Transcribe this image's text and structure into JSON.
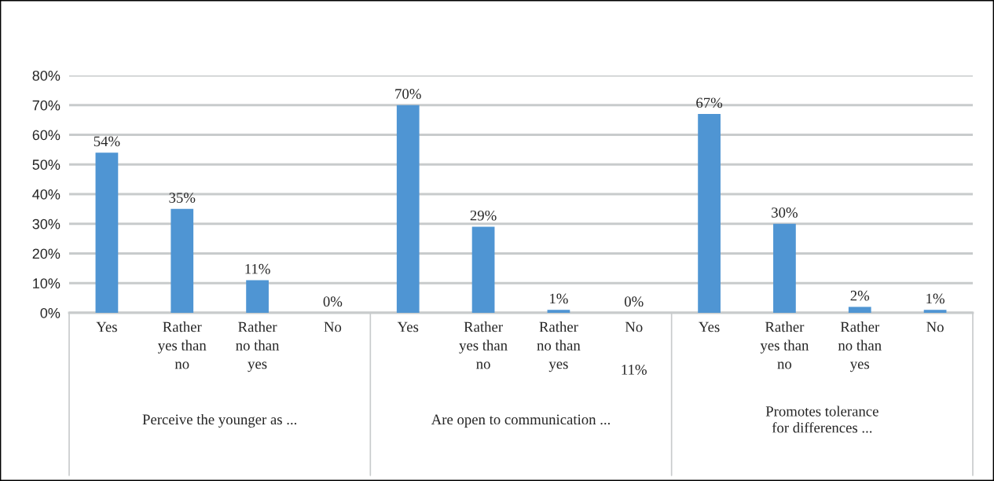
{
  "chart_data": {
    "type": "bar",
    "categories": [
      "Yes",
      "Rather\nyes than\nno",
      "Rather\nno than\nyes",
      "No",
      "Yes",
      "Rather\nyes than\nno",
      "Rather\nno than\nyes",
      "No",
      "Yes",
      "Rather\nyes than\nno",
      "Rather\nno than\nyes",
      "No"
    ],
    "values": [
      54,
      35,
      11,
      0,
      70,
      29,
      1,
      0,
      67,
      30,
      2,
      1
    ],
    "value_labels": [
      "54%",
      "35%",
      "11%",
      "0%",
      "70%",
      "29%",
      "1%",
      "0%",
      "67%",
      "30%",
      "2%",
      "1%"
    ],
    "color": "#4f95d3",
    "ylim": [
      0,
      80
    ],
    "yticks": [
      {
        "value": 0,
        "label": "0%"
      },
      {
        "value": 10,
        "label": "10%"
      },
      {
        "value": 20,
        "label": "20%"
      },
      {
        "value": 30,
        "label": "30%"
      },
      {
        "value": 40,
        "label": "40%"
      },
      {
        "value": 50,
        "label": "50%"
      },
      {
        "value": 60,
        "label": "60%"
      },
      {
        "value": 70,
        "label": "70%"
      },
      {
        "value": 80,
        "label": "80%"
      }
    ],
    "grid": "y",
    "annotations": [
      "Perceive the younger as ...",
      "Are open to communication ...",
      "Promotes tolerance\nfor differences ...",
      "11%"
    ]
  }
}
